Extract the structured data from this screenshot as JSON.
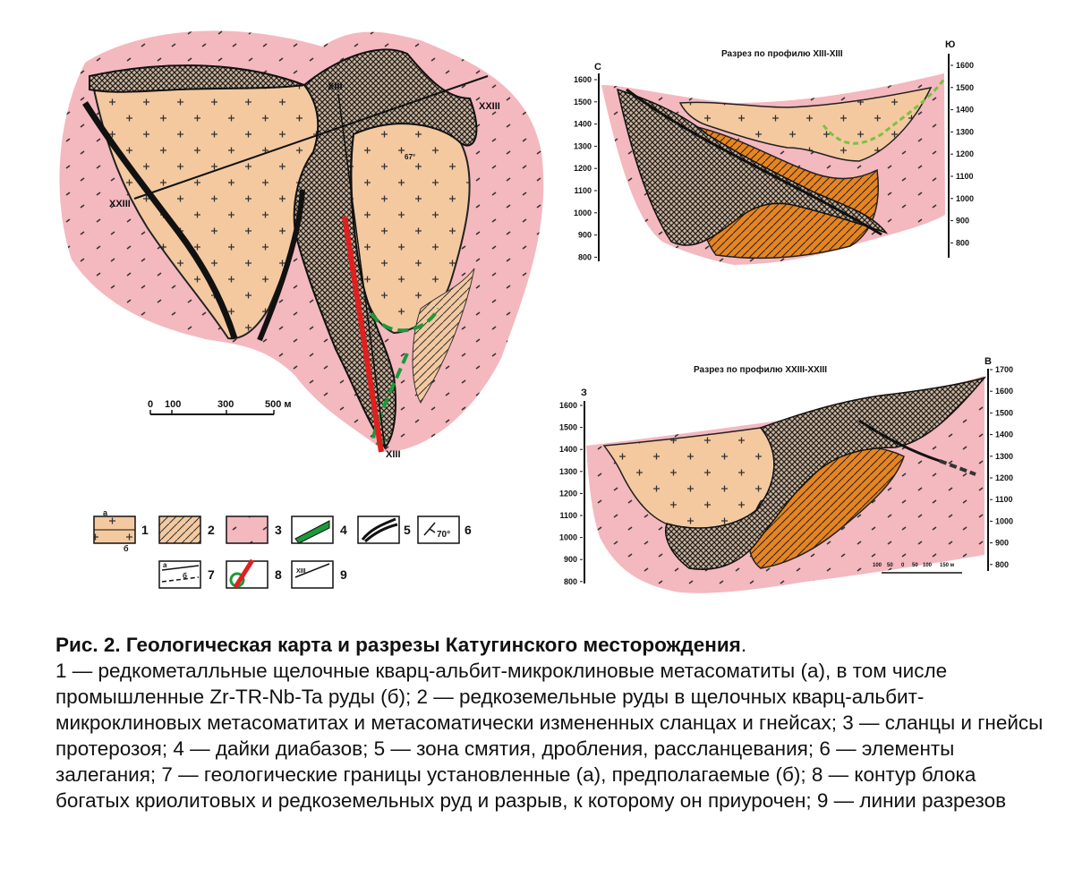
{
  "map": {
    "profile_labels": [
      "XIII",
      "XXIII",
      "XXIII",
      "XIII"
    ],
    "dip_angle": "67°",
    "scale_ticks": [
      "0",
      "100",
      "300",
      "500 м"
    ]
  },
  "section1": {
    "title": "Разрез по профилю XIII-XIII",
    "left_dir": "С",
    "right_dir": "Ю",
    "left_ticks": [
      "1600",
      "1500",
      "1400",
      "1300",
      "1200",
      "1100",
      "1000",
      "900",
      "800"
    ],
    "right_ticks": [
      "1600",
      "1500",
      "1400",
      "1300",
      "1200",
      "1100",
      "1000",
      "900",
      "800"
    ]
  },
  "section2": {
    "title": "Разрез по профилю XXIII-XXIII",
    "left_dir": "З",
    "right_dir": "В",
    "left_ticks": [
      "1600",
      "1500",
      "1400",
      "1300",
      "1200",
      "1100",
      "1000",
      "900",
      "800"
    ],
    "right_ticks": [
      "1700",
      "1600",
      "1500",
      "1400",
      "1300",
      "1200",
      "1100",
      "1000",
      "900",
      "800"
    ],
    "scale_ticks": [
      "100",
      "50",
      "0",
      "50",
      "100",
      "150 м"
    ]
  },
  "legend": {
    "items": [
      {
        "num": "1",
        "sub_a": "а",
        "sub_b": "б"
      },
      {
        "num": "2"
      },
      {
        "num": "3"
      },
      {
        "num": "4"
      },
      {
        "num": "5"
      },
      {
        "num": "6",
        "angle": "70°"
      },
      {
        "num": "7",
        "sub_a": "а",
        "sub_b": "б"
      },
      {
        "num": "8"
      },
      {
        "num": "9",
        "sample": "XIII"
      }
    ]
  },
  "caption": {
    "title": "Рис. 2. Геологическая карта и разрезы Катугинского месторождения",
    "title_end": ".",
    "text": "1 — редкометалльные щелочные кварц-альбит-микроклиновые метасоматиты (а), в том числе промышленные Zr-TR-Nb-Ta руды (б); 2 — редкоземельные руды в щелочных кварц-альбит-микроклиновых метасоматитах и метасоматически измененных сланцах и гнейсах; 3 — сланцы и гнейсы протерозоя; 4 — дайки диабазов; 5 — зона смятия, дробления, рассланцевания; 6 — элементы залегания; 7 — геологические границы установленные (а), предполагаемые (б); 8 — контур блока богатых криолитовых и редкоземельных руд и разрыв, к которому он приурочен; 9 — линии разрезов"
  },
  "colors": {
    "pink": "#f4b8bf",
    "orange_fill": "#f4c9a0",
    "ore_orange": "#e8841f",
    "dark": "#222222",
    "red_fault": "#e02020",
    "green_dyke": "#1c9a3a"
  }
}
